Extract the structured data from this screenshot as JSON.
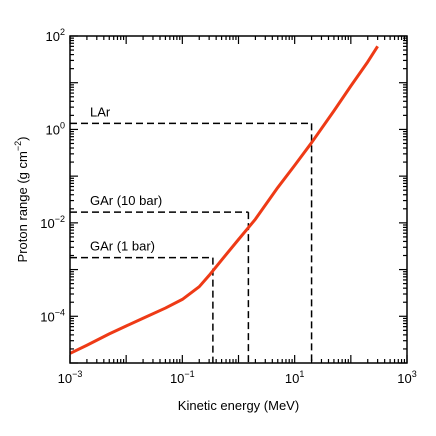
{
  "chart_data": {
    "type": "line",
    "xlabel": "Kinetic energy (MeV)",
    "ylabel": "Proton range (g cm",
    "ylabel_sup": "−2",
    "ylabel_suffix": ")",
    "xscale": "log",
    "yscale": "log",
    "xlim": [
      0.001,
      1000
    ],
    "ylim": [
      1e-05,
      100
    ],
    "x_ticks": [
      {
        "base": "10",
        "exp": "−3"
      },
      {
        "base": "10",
        "exp": "−1"
      },
      {
        "base": "10",
        "exp": "1"
      },
      {
        "base": "10",
        "exp": "3"
      }
    ],
    "y_ticks": [
      {
        "base": "10",
        "exp": "−4"
      },
      {
        "base": "10",
        "exp": "−2"
      },
      {
        "base": "10",
        "exp": "0"
      },
      {
        "base": "10",
        "exp": "2"
      }
    ],
    "series": [
      {
        "color": "#ee3a16",
        "x": [
          0.001,
          0.002,
          0.005,
          0.01,
          0.02,
          0.05,
          0.1,
          0.2,
          0.3,
          0.5,
          1,
          2,
          5,
          10,
          20,
          50,
          100,
          200,
          300
        ],
        "y": [
          1.6e-05,
          2.4e-05,
          4.2e-05,
          6.2e-05,
          9.1e-05,
          0.00015,
          0.00023,
          0.00043,
          0.00075,
          0.0016,
          0.0044,
          0.012,
          0.057,
          0.17,
          0.52,
          2.5,
          8.5,
          28,
          60
        ]
      }
    ],
    "annotations": [
      {
        "label": "LAr",
        "x": 20,
        "y": 1.35
      },
      {
        "label": "GAr (10 bar)",
        "x": 1.5,
        "y": 0.017
      },
      {
        "label": "GAr (1 bar)",
        "x": 0.35,
        "y": 0.0018
      }
    ]
  }
}
